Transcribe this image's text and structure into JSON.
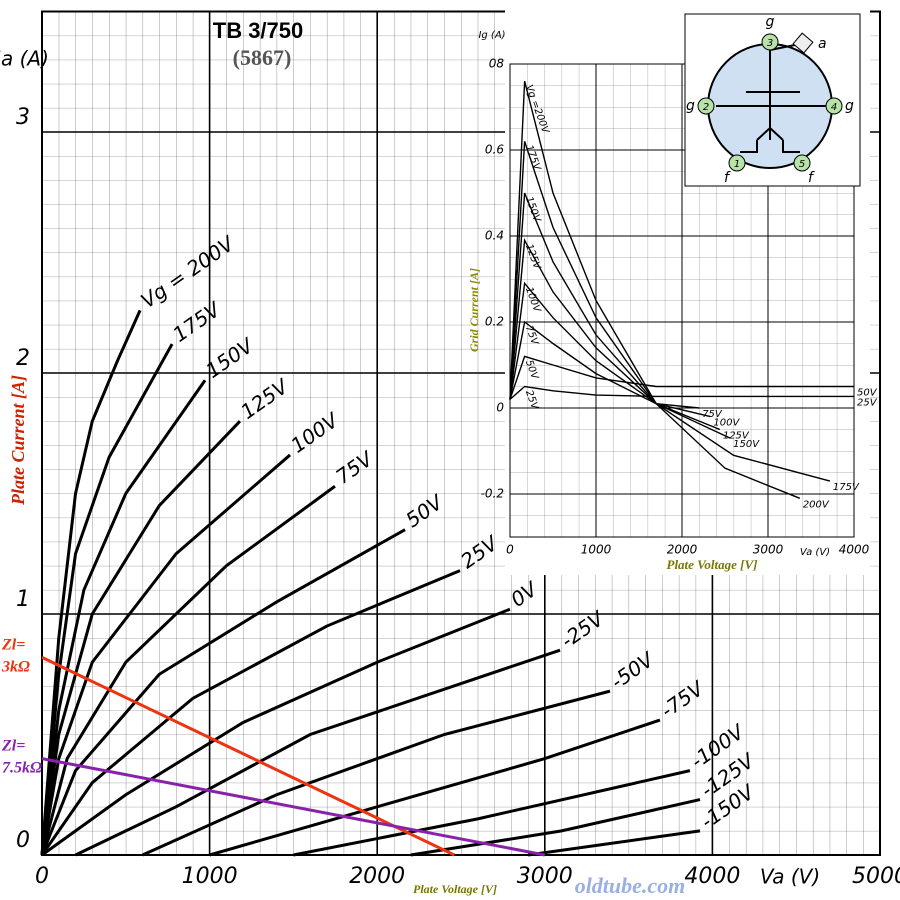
{
  "chart_data": [
    {
      "type": "line",
      "title": "TB 3/750",
      "subtitle": "(5867)",
      "y_unit": "Ia (A)",
      "ylabel": "Plate Current [A]",
      "xlabel": "Plate Voltage [V]",
      "x_unit": "Va (V)",
      "xlim": [
        0,
        5000
      ],
      "ylim": [
        0,
        3.5
      ],
      "xticks": [
        0,
        1000,
        2000,
        3000,
        4000,
        5000
      ],
      "yticks": [
        0,
        1,
        2,
        3
      ],
      "series": [
        {
          "name": "Vg = 200V",
          "color": "#000000",
          "x": [
            0,
            100,
            200,
            300,
            450,
            585
          ],
          "values": [
            0,
            0.9,
            1.5,
            1.8,
            2.05,
            2.26
          ]
        },
        {
          "name": "175V",
          "color": "#000000",
          "x": [
            0,
            100,
            200,
            400,
            600,
            776
          ],
          "values": [
            0,
            0.75,
            1.25,
            1.65,
            1.9,
            2.12
          ]
        },
        {
          "name": "150V",
          "color": "#000000",
          "x": [
            0,
            100,
            250,
            500,
            973
          ],
          "values": [
            0,
            0.6,
            1.1,
            1.5,
            1.97
          ]
        },
        {
          "name": "125V",
          "color": "#000000",
          "x": [
            0,
            100,
            300,
            700,
            1181
          ],
          "values": [
            0,
            0.5,
            1.0,
            1.45,
            1.8
          ]
        },
        {
          "name": "100V",
          "color": "#000000",
          "x": [
            0,
            100,
            300,
            800,
            1480
          ],
          "values": [
            0,
            0.4,
            0.8,
            1.25,
            1.66
          ]
        },
        {
          "name": "75V",
          "color": "#000000",
          "x": [
            0,
            150,
            500,
            1100,
            1748
          ],
          "values": [
            0,
            0.4,
            0.8,
            1.2,
            1.53
          ]
        },
        {
          "name": "50V",
          "color": "#000000",
          "x": [
            0,
            200,
            700,
            1400,
            2166
          ],
          "values": [
            0,
            0.35,
            0.75,
            1.05,
            1.35
          ]
        },
        {
          "name": "25V",
          "color": "#000000",
          "x": [
            0,
            300,
            900,
            1700,
            2494
          ],
          "values": [
            0,
            0.3,
            0.65,
            0.95,
            1.18
          ]
        },
        {
          "name": "0V",
          "color": "#000000",
          "x": [
            0,
            500,
            1200,
            2000,
            2792
          ],
          "values": [
            0,
            0.25,
            0.55,
            0.8,
            1.02
          ]
        },
        {
          "name": "-25V",
          "color": "#000000",
          "x": [
            200,
            800,
            1600,
            3091
          ],
          "values": [
            0,
            0.2,
            0.5,
            0.85
          ]
        },
        {
          "name": "-50V",
          "color": "#000000",
          "x": [
            600,
            1400,
            2400,
            3389
          ],
          "values": [
            0,
            0.25,
            0.5,
            0.68
          ]
        },
        {
          "name": "-75V",
          "color": "#000000",
          "x": [
            1000,
            2000,
            3000,
            3687
          ],
          "values": [
            0,
            0.2,
            0.4,
            0.56
          ]
        },
        {
          "name": "-100V",
          "color": "#000000",
          "x": [
            1500,
            2600,
            3866
          ],
          "values": [
            0,
            0.15,
            0.35
          ]
        },
        {
          "name": "-125V",
          "color": "#000000",
          "x": [
            2200,
            3100,
            3926
          ],
          "values": [
            0,
            0.1,
            0.23
          ]
        },
        {
          "name": "-150V",
          "color": "#000000",
          "x": [
            2900,
            3926
          ],
          "values": [
            0,
            0.1
          ]
        }
      ],
      "load_lines": [
        {
          "name": "Zl= 3kΩ",
          "color": "#ee3311",
          "x": [
            0,
            2460
          ],
          "values": [
            0.82,
            0
          ]
        },
        {
          "name": "Zl= 7.5kΩ",
          "color": "#8822aa",
          "x": [
            0,
            3000
          ],
          "values": [
            0.4,
            0
          ]
        }
      ]
    },
    {
      "type": "line",
      "y_unit": "Ig (A)",
      "ylabel": "Grid Current [A]",
      "xlabel": "Plate Voltage [V]",
      "x_unit": "Va (V)",
      "xlim": [
        0,
        4000
      ],
      "ylim": [
        -0.3,
        0.8
      ],
      "xticks": [
        0,
        1000,
        2000,
        3000,
        4000
      ],
      "yticks": [
        -0.2,
        0,
        0.2,
        0.4,
        0.6,
        {
          "value": 0.8,
          "label": "08"
        }
      ],
      "series": [
        {
          "name": "Vg =200V",
          "end_label": "200V",
          "color": "#000000",
          "x": [
            0,
            170,
            500,
            1000,
            1700,
            2500,
            3370
          ],
          "values": [
            0.02,
            0.76,
            0.5,
            0.25,
            0.01,
            -0.14,
            -0.21
          ]
        },
        {
          "name": "175V",
          "end_label": "175V",
          "color": "#000000",
          "x": [
            0,
            170,
            500,
            1000,
            1700,
            2600,
            3720
          ],
          "values": [
            0.02,
            0.62,
            0.42,
            0.21,
            0.01,
            -0.11,
            -0.17
          ]
        },
        {
          "name": "150V",
          "end_label": "150V",
          "color": "#000000",
          "x": [
            0,
            170,
            500,
            1000,
            1700,
            2560
          ],
          "values": [
            0.02,
            0.5,
            0.34,
            0.17,
            0.01,
            -0.07
          ]
        },
        {
          "name": "125V",
          "end_label": "125V",
          "color": "#000000",
          "x": [
            0,
            170,
            500,
            1000,
            1700,
            2440
          ],
          "values": [
            0.02,
            0.39,
            0.27,
            0.14,
            0.01,
            -0.05
          ]
        },
        {
          "name": "100V",
          "end_label": "100V",
          "color": "#000000",
          "x": [
            0,
            170,
            500,
            1000,
            1700,
            2330
          ],
          "values": [
            0.02,
            0.29,
            0.21,
            0.11,
            0.01,
            -0.02
          ]
        },
        {
          "name": "75V",
          "end_label": "75V",
          "color": "#000000",
          "x": [
            0,
            170,
            500,
            1000,
            1700,
            2200
          ],
          "values": [
            0.02,
            0.2,
            0.15,
            0.08,
            0.01,
            0
          ]
        },
        {
          "name": "50V",
          "end_label": "50V",
          "color": "#000000",
          "x": [
            0,
            170,
            500,
            1000,
            1700,
            4000
          ],
          "values": [
            0.02,
            0.12,
            0.1,
            0.07,
            0.05,
            0.05
          ]
        },
        {
          "name": "25V",
          "end_label": "25V",
          "color": "#000000",
          "x": [
            0,
            170,
            500,
            1000,
            1700,
            4000
          ],
          "values": [
            0.02,
            0.05,
            0.04,
            0.03,
            0.027,
            0.027
          ]
        }
      ]
    }
  ],
  "diagram": {
    "pins": [
      "g",
      "3",
      "a",
      "g",
      "2",
      "4",
      "g",
      "1",
      "f",
      "5",
      "f"
    ]
  },
  "watermark": "oldtube.com"
}
